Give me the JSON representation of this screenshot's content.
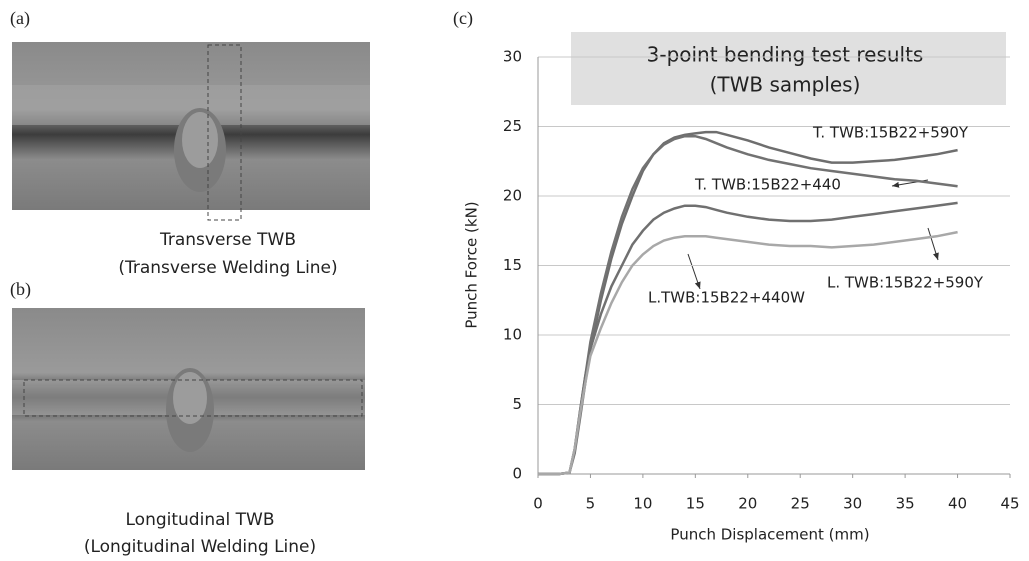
{
  "panels": {
    "a": {
      "label": "(a)",
      "caption": [
        "Transverse TWB",
        "(Transverse Welding Line)"
      ]
    },
    "b": {
      "label": "(b)",
      "caption": [
        "Longitudinal  TWB",
        "(Longitudinal Welding Line)"
      ]
    },
    "c": {
      "label": "(c)"
    }
  },
  "chart_data": {
    "type": "line",
    "title": [
      "3-point bending test results",
      "(TWB samples)"
    ],
    "x_label": "Punch Displacement (mm)",
    "y_label": "Punch Force (kN)",
    "xlim": [
      0,
      45
    ],
    "xticks": [
      0,
      5,
      10,
      15,
      20,
      25,
      30,
      35,
      40,
      45
    ],
    "ylim": [
      0,
      30
    ],
    "yticks": [
      0,
      5,
      10,
      15,
      20,
      25,
      30
    ],
    "grid": true,
    "x": [
      0,
      2,
      3,
      3.5,
      4,
      4.5,
      5,
      6,
      7,
      8,
      9,
      10,
      11,
      12,
      13,
      14,
      15,
      16,
      17,
      18,
      20,
      22,
      24,
      26,
      28,
      30,
      32,
      34,
      36,
      38,
      40
    ],
    "series": [
      {
        "name": "T. TWB:15B22+590Y",
        "color": "#6e6e6e",
        "values": [
          0,
          0,
          0.1,
          1.5,
          4,
          6.5,
          9,
          12.5,
          15.5,
          18,
          20,
          21.8,
          23,
          23.8,
          24.2,
          24.4,
          24.5,
          24.6,
          24.6,
          24.4,
          24,
          23.5,
          23.1,
          22.7,
          22.4,
          22.4,
          22.5,
          22.6,
          22.8,
          23,
          23.3
        ]
      },
      {
        "name": "T. TWB:15B22+440",
        "color": "#727272",
        "values": [
          0,
          0,
          0.1,
          1.8,
          4.5,
          7,
          9.5,
          13,
          16,
          18.5,
          20.5,
          22,
          23,
          23.7,
          24.1,
          24.3,
          24.3,
          24.1,
          23.8,
          23.5,
          23,
          22.6,
          22.3,
          22,
          21.8,
          21.6,
          21.4,
          21.2,
          21.1,
          20.9,
          20.7
        ]
      },
      {
        "name": "L. TWB:15B22+590Y",
        "color": "#707070",
        "values": [
          0,
          0,
          0.1,
          1.8,
          4.5,
          7,
          9,
          11.5,
          13.5,
          15,
          16.5,
          17.5,
          18.3,
          18.8,
          19.1,
          19.3,
          19.3,
          19.2,
          19,
          18.8,
          18.5,
          18.3,
          18.2,
          18.2,
          18.3,
          18.5,
          18.7,
          18.9,
          19.1,
          19.3,
          19.5
        ]
      },
      {
        "name": "L.TWB:15B22+440W",
        "color": "#a8a8a8",
        "values": [
          0,
          0,
          0.1,
          1.8,
          4.3,
          6.5,
          8.5,
          10.5,
          12.3,
          13.8,
          15,
          15.8,
          16.4,
          16.8,
          17,
          17.1,
          17.1,
          17.1,
          17,
          16.9,
          16.7,
          16.5,
          16.4,
          16.4,
          16.3,
          16.4,
          16.5,
          16.7,
          16.9,
          17.1,
          17.4
        ]
      }
    ]
  }
}
